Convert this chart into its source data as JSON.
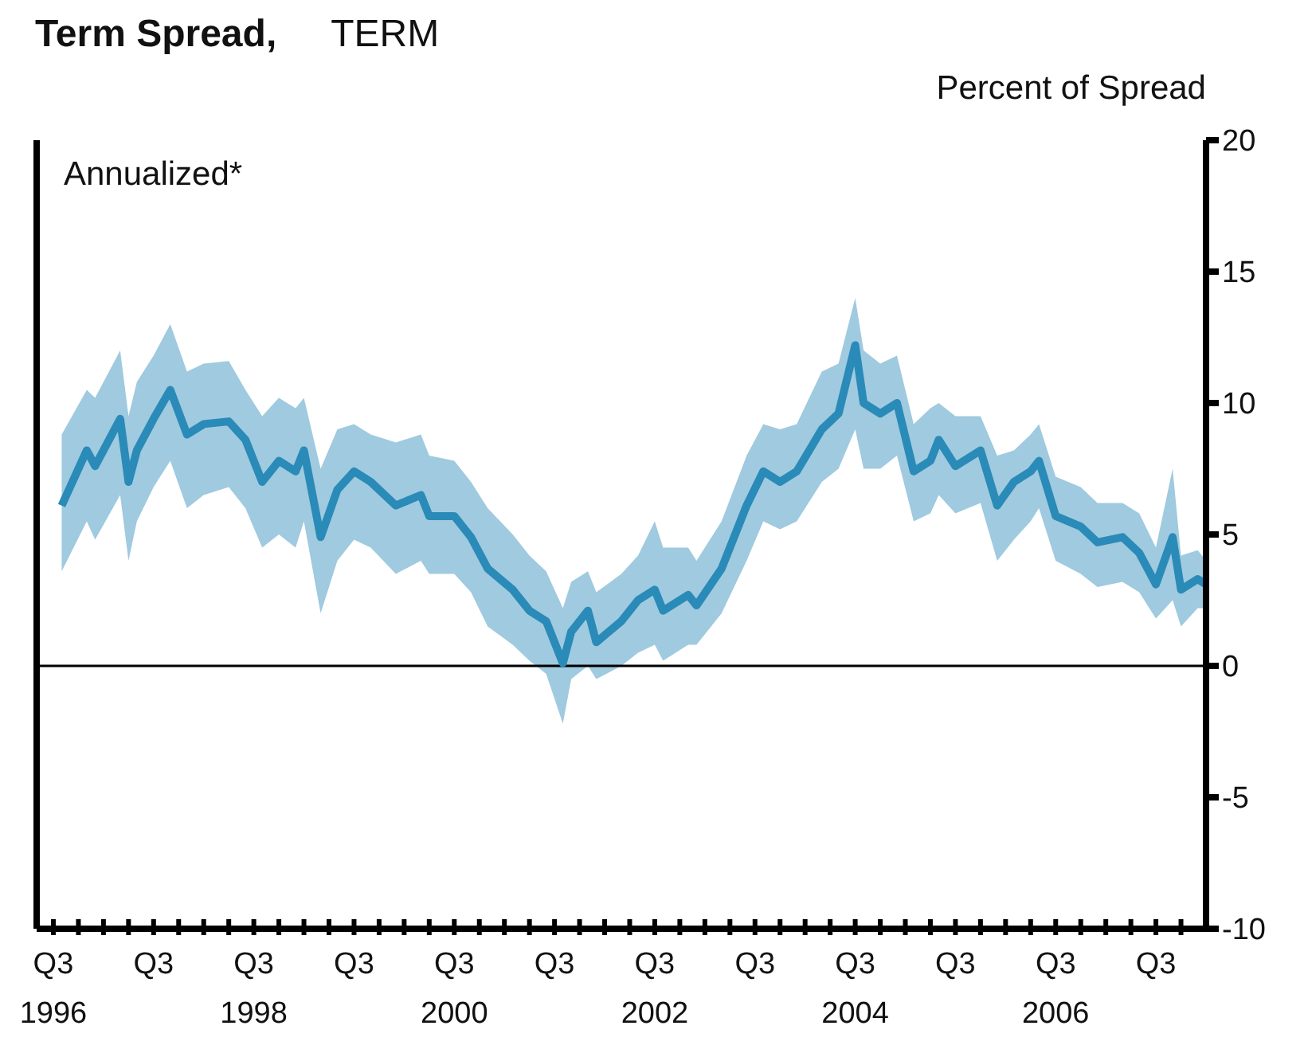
{
  "chart_data": {
    "type": "line",
    "title": "Term Spread,",
    "subtitle": "TERM",
    "ylabel": "Percent of Spread",
    "annotations": [
      "Annualized*"
    ],
    "x": [
      "1996-08",
      "1996-11",
      "1996-12",
      "1997-03",
      "1997-04",
      "1997-05",
      "1997-07",
      "1997-09",
      "1997-11",
      "1998-01",
      "1998-04",
      "1998-06",
      "1998-08",
      "1998-10",
      "1998-12",
      "1999-01",
      "1999-03",
      "1999-05",
      "1999-07",
      "1999-09",
      "1999-12",
      "2000-03",
      "2000-04",
      "2000-07",
      "2000-09",
      "2000-11",
      "2001-02",
      "2001-04",
      "2001-06",
      "2001-08",
      "2001-09",
      "2001-11",
      "2001-12",
      "2002-03",
      "2002-05",
      "2002-07",
      "2002-08",
      "2002-11",
      "2002-12",
      "2003-03",
      "2003-06",
      "2003-08",
      "2003-10",
      "2003-12",
      "2004-03",
      "2004-05",
      "2004-07",
      "2004-08",
      "2004-10",
      "2004-12",
      "2005-02",
      "2005-04",
      "2005-05",
      "2005-07",
      "2005-10",
      "2005-12",
      "2006-02",
      "2006-04",
      "2006-05",
      "2006-07",
      "2006-10",
      "2006-12",
      "2007-03",
      "2007-05",
      "2007-07",
      "2007-09",
      "2007-10",
      "2007-12",
      "2008-01"
    ],
    "series": [
      {
        "color": "#2a8ab8",
        "values": [
          6.1,
          8.2,
          7.6,
          9.4,
          7.0,
          8.2,
          9.4,
          10.5,
          8.8,
          9.2,
          9.3,
          8.6,
          7.0,
          7.8,
          7.4,
          8.2,
          4.9,
          6.7,
          7.4,
          7.0,
          6.1,
          6.5,
          5.7,
          5.7,
          4.9,
          3.7,
          2.9,
          2.1,
          1.7,
          0.1,
          1.3,
          2.1,
          0.9,
          1.7,
          2.5,
          2.9,
          2.1,
          2.7,
          2.3,
          3.7,
          6.1,
          7.4,
          7.0,
          7.4,
          9.0,
          9.6,
          12.2,
          10.0,
          9.6,
          10.0,
          7.4,
          7.8,
          8.6,
          7.6,
          8.2,
          6.1,
          7.0,
          7.4,
          7.8,
          5.7,
          5.3,
          4.7,
          4.9,
          4.3,
          3.1,
          4.9,
          2.9,
          3.3,
          3.1
        ],
        "lower": [
          3.6,
          5.5,
          4.8,
          6.5,
          4.0,
          5.5,
          6.8,
          7.8,
          6.0,
          6.5,
          6.8,
          6.0,
          4.5,
          5.0,
          4.5,
          5.5,
          2.0,
          4.0,
          4.8,
          4.5,
          3.5,
          4.0,
          3.5,
          3.5,
          2.8,
          1.5,
          0.8,
          0.2,
          -0.3,
          -2.2,
          -0.5,
          0.0,
          -0.5,
          0.0,
          0.5,
          0.8,
          0.2,
          0.8,
          0.8,
          2.0,
          4.0,
          5.5,
          5.2,
          5.5,
          7.0,
          7.5,
          9.0,
          7.5,
          7.5,
          8.0,
          5.5,
          5.8,
          6.5,
          5.8,
          6.2,
          4.0,
          4.8,
          5.5,
          6.0,
          4.0,
          3.5,
          3.0,
          3.2,
          2.8,
          1.8,
          2.5,
          1.5,
          2.2,
          2.2
        ],
        "upper": [
          8.8,
          10.5,
          10.2,
          12.0,
          9.5,
          10.8,
          11.8,
          13.0,
          11.2,
          11.5,
          11.6,
          10.5,
          9.5,
          10.2,
          9.8,
          10.2,
          7.5,
          9.0,
          9.2,
          8.8,
          8.5,
          8.8,
          8.0,
          7.8,
          7.0,
          6.0,
          5.0,
          4.2,
          3.6,
          2.2,
          3.2,
          3.6,
          2.8,
          3.5,
          4.2,
          5.5,
          4.5,
          4.5,
          4.0,
          5.5,
          8.0,
          9.2,
          9.0,
          9.2,
          11.2,
          11.5,
          14.0,
          12.0,
          11.5,
          11.8,
          9.2,
          9.8,
          10.0,
          9.5,
          9.5,
          8.0,
          8.2,
          8.8,
          9.2,
          7.2,
          6.8,
          6.2,
          6.2,
          5.8,
          4.5,
          7.5,
          4.2,
          4.4,
          4.0
        ]
      }
    ],
    "xlim": [
      "1996-05",
      "2008-01"
    ],
    "xticks": [
      {
        "value": "1996-07",
        "label": "Q3\n1996"
      },
      {
        "value": "1996-10",
        "label": null
      },
      {
        "value": "1997-01",
        "label": null
      },
      {
        "value": "1997-04",
        "label": null
      },
      {
        "value": "1997-07",
        "label": "Q3"
      },
      {
        "value": "1997-10",
        "label": null
      },
      {
        "value": "1998-01",
        "label": null
      },
      {
        "value": "1998-04",
        "label": null
      },
      {
        "value": "1998-07",
        "label": "Q3\n1998"
      },
      {
        "value": "1998-10",
        "label": null
      },
      {
        "value": "1999-01",
        "label": null
      },
      {
        "value": "1999-04",
        "label": null
      },
      {
        "value": "1999-07",
        "label": "Q3"
      },
      {
        "value": "1999-10",
        "label": null
      },
      {
        "value": "2000-01",
        "label": null
      },
      {
        "value": "2000-04",
        "label": null
      },
      {
        "value": "2000-07",
        "label": "Q3\n2000"
      },
      {
        "value": "2000-10",
        "label": null
      },
      {
        "value": "2001-01",
        "label": null
      },
      {
        "value": "2001-04",
        "label": null
      },
      {
        "value": "2001-07",
        "label": "Q3"
      },
      {
        "value": "2001-10",
        "label": null
      },
      {
        "value": "2002-01",
        "label": null
      },
      {
        "value": "2002-04",
        "label": null
      },
      {
        "value": "2002-07",
        "label": "Q3\n2002"
      },
      {
        "value": "2002-10",
        "label": null
      },
      {
        "value": "2003-01",
        "label": null
      },
      {
        "value": "2003-04",
        "label": null
      },
      {
        "value": "2003-07",
        "label": "Q3"
      },
      {
        "value": "2003-10",
        "label": null
      },
      {
        "value": "2004-01",
        "label": null
      },
      {
        "value": "2004-04",
        "label": null
      },
      {
        "value": "2004-07",
        "label": "Q3\n2004"
      },
      {
        "value": "2004-10",
        "label": null
      },
      {
        "value": "2005-01",
        "label": null
      },
      {
        "value": "2005-04",
        "label": null
      },
      {
        "value": "2005-07",
        "label": "Q3"
      },
      {
        "value": "2005-10",
        "label": null
      },
      {
        "value": "2006-01",
        "label": null
      },
      {
        "value": "2006-04",
        "label": null
      },
      {
        "value": "2006-07",
        "label": "Q3\n2006"
      },
      {
        "value": "2006-10",
        "label": null
      },
      {
        "value": "2007-01",
        "label": null
      },
      {
        "value": "2007-04",
        "label": null
      },
      {
        "value": "2007-07",
        "label": "Q3"
      },
      {
        "value": "2007-10",
        "label": null
      }
    ],
    "ylim": [
      -10,
      20
    ],
    "yticks": [
      -10,
      -5,
      0,
      5,
      10,
      15,
      20
    ],
    "ref_lines": [
      {
        "axis": "y",
        "value": 0,
        "color": "#000000"
      }
    ],
    "grid": false,
    "legend": false,
    "marker": "none",
    "line_style": "solid"
  }
}
